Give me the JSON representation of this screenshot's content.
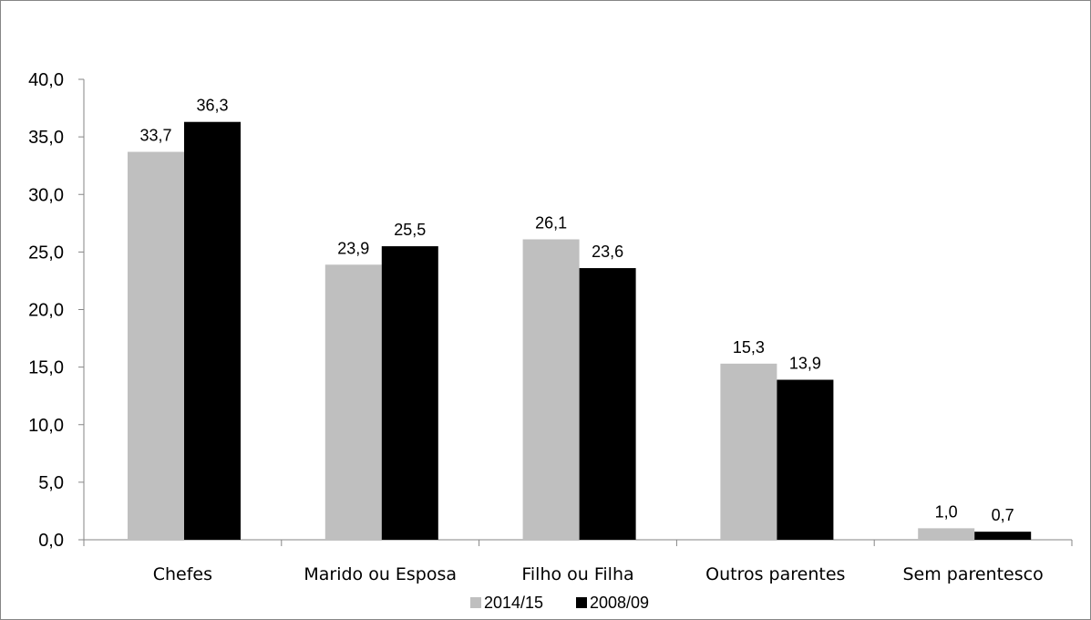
{
  "chart_data": {
    "type": "bar",
    "categories": [
      "Chefes",
      "Marido ou Esposa",
      "Filho ou Filha",
      "Outros parentes",
      "Sem parentesco"
    ],
    "series": [
      {
        "name": "2014/15",
        "values": [
          33.7,
          23.9,
          26.1,
          15.3,
          1.0
        ],
        "labels": [
          "33,7",
          "23,9",
          "26,1",
          "15,3",
          "1,0"
        ],
        "color": "#bfbfbf"
      },
      {
        "name": "2008/09",
        "values": [
          36.3,
          25.5,
          23.6,
          13.9,
          0.7
        ],
        "labels": [
          "36,3",
          "25,5",
          "23,6",
          "13,9",
          "0,7"
        ],
        "color": "#000000"
      }
    ],
    "ylim": [
      0,
      40
    ],
    "yticks": [
      0,
      5,
      10,
      15,
      20,
      25,
      30,
      35,
      40
    ],
    "ytick_labels": [
      "0,0",
      "5,0",
      "10,0",
      "15,0",
      "20,0",
      "25,0",
      "30,0",
      "35,0",
      "40,0"
    ],
    "title": "",
    "xlabel": "",
    "ylabel": "",
    "grid": false,
    "legend_position": "bottom"
  }
}
